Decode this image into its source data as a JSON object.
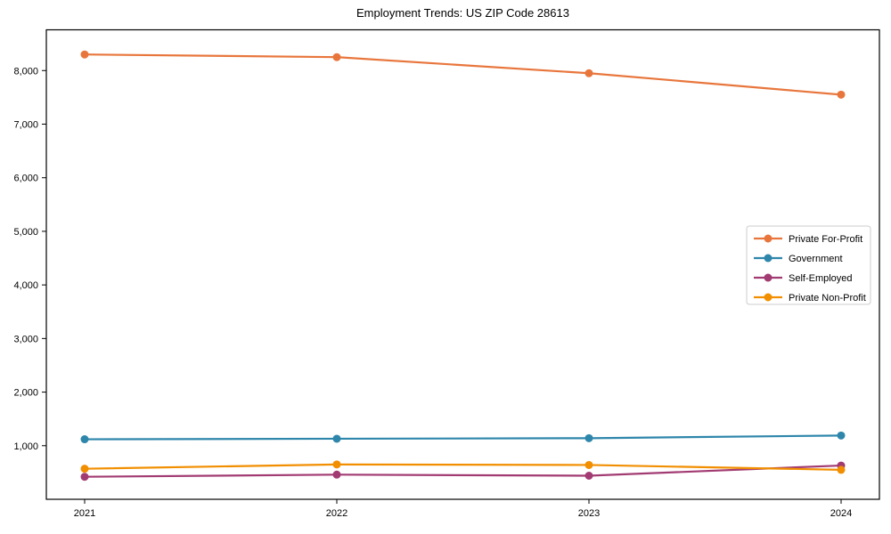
{
  "chart_data": {
    "type": "line",
    "title": "Employment Trends: US ZIP Code 28613",
    "x": [
      2021,
      2022,
      2023,
      2024
    ],
    "xtick_labels": [
      "2021",
      "2022",
      "2023",
      "2024"
    ],
    "yticks": [
      1000,
      2000,
      3000,
      4000,
      5000,
      6000,
      7000,
      8000
    ],
    "ytick_labels": [
      "1,000",
      "2,000",
      "3,000",
      "4,000",
      "5,000",
      "6,000",
      "7,000",
      "8,000"
    ],
    "ylim": [
      0,
      8760
    ],
    "grid": false,
    "legend_position": "center right",
    "marker": "circle",
    "series": [
      {
        "name": "Private For-Profit",
        "color": "#E8763C",
        "values": [
          8300,
          8250,
          7950,
          7550
        ]
      },
      {
        "name": "Government",
        "color": "#2E86AB",
        "values": [
          1120,
          1130,
          1140,
          1190
        ]
      },
      {
        "name": "Self-Employed",
        "color": "#A23B72",
        "values": [
          420,
          460,
          440,
          630
        ]
      },
      {
        "name": "Private Non-Profit",
        "color": "#F18F01",
        "values": [
          570,
          650,
          640,
          550
        ]
      }
    ],
    "frame_color": "#000000",
    "legend_border_color": "#cccccc",
    "legend_background": "#ffffff"
  }
}
